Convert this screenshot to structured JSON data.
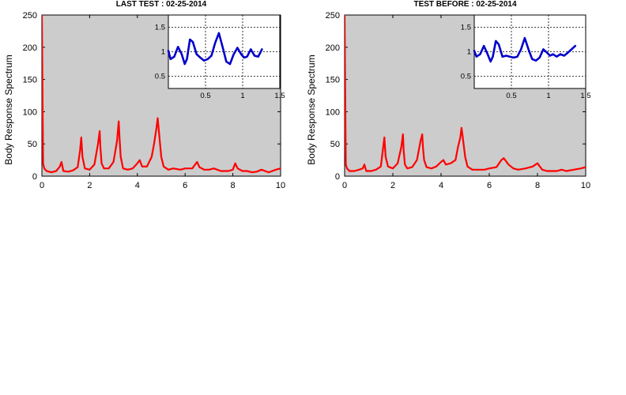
{
  "chart_data": [
    {
      "type": "line",
      "title": "LAST TEST : 02-25-2014",
      "ylabel": "Body Response Spectrum",
      "xlabel": "",
      "xlim": [
        0,
        10
      ],
      "ylim": [
        0,
        250
      ],
      "xticks": [
        "0",
        "2",
        "4",
        "6",
        "8",
        "10"
      ],
      "yticks": [
        "0",
        "50",
        "100",
        "150",
        "200",
        "250"
      ],
      "background": "#cccccc",
      "grid": false,
      "series": [
        {
          "color": "#ff0000",
          "x": [
            0.0,
            0.02,
            0.05,
            0.1,
            0.2,
            0.4,
            0.6,
            0.75,
            0.82,
            0.9,
            1.1,
            1.3,
            1.5,
            1.6,
            1.65,
            1.7,
            1.8,
            2.0,
            2.2,
            2.35,
            2.42,
            2.45,
            2.5,
            2.6,
            2.8,
            3.0,
            3.15,
            3.22,
            3.25,
            3.3,
            3.4,
            3.6,
            3.8,
            4.0,
            4.1,
            4.2,
            4.4,
            4.6,
            4.7,
            4.8,
            4.85,
            4.9,
            5.0,
            5.1,
            5.3,
            5.5,
            5.8,
            6.0,
            6.3,
            6.5,
            6.6,
            6.8,
            7.0,
            7.2,
            7.5,
            7.8,
            8.0,
            8.1,
            8.2,
            8.4,
            8.6,
            8.8,
            9.0,
            9.2,
            9.5,
            9.8,
            10.0
          ],
          "y": [
            250,
            160,
            20,
            12,
            8,
            6,
            8,
            15,
            22,
            8,
            7,
            9,
            14,
            40,
            60,
            30,
            12,
            10,
            18,
            50,
            70,
            45,
            20,
            12,
            12,
            22,
            55,
            85,
            60,
            30,
            12,
            10,
            12,
            20,
            25,
            15,
            15,
            30,
            50,
            75,
            90,
            70,
            30,
            15,
            10,
            12,
            10,
            12,
            12,
            22,
            14,
            10,
            10,
            12,
            8,
            8,
            10,
            20,
            12,
            8,
            8,
            6,
            7,
            10,
            6,
            10,
            12
          ]
        }
      ],
      "inset": {
        "xlim": [
          0,
          1.5
        ],
        "ylim": [
          0.25,
          1.75
        ],
        "xticks": [
          "0.5",
          "1",
          "1.5"
        ],
        "yticks": [
          "0.5",
          "1",
          "1.5"
        ],
        "grid": true,
        "series": [
          {
            "color": "#0000cc",
            "x": [
              0.0,
              0.03,
              0.08,
              0.13,
              0.18,
              0.22,
              0.25,
              0.29,
              0.33,
              0.38,
              0.43,
              0.48,
              0.53,
              0.58,
              0.63,
              0.68,
              0.73,
              0.78,
              0.83,
              0.88,
              0.93,
              0.98,
              1.02,
              1.06,
              1.11,
              1.16,
              1.21,
              1.26
            ],
            "y": [
              1.02,
              0.85,
              0.9,
              1.1,
              0.95,
              0.75,
              0.85,
              1.25,
              1.2,
              0.95,
              0.88,
              0.82,
              0.85,
              0.92,
              1.18,
              1.38,
              1.1,
              0.8,
              0.75,
              0.95,
              1.08,
              0.95,
              0.88,
              0.9,
              1.05,
              0.92,
              0.9,
              1.05
            ]
          }
        ]
      }
    },
    {
      "type": "line",
      "title": "TEST BEFORE : 02-25-2014",
      "ylabel": "Body Response Spectrum",
      "xlabel": "",
      "xlim": [
        0,
        10
      ],
      "ylim": [
        0,
        250
      ],
      "xticks": [
        "0",
        "2",
        "4",
        "6",
        "8",
        "10"
      ],
      "yticks": [
        "0",
        "50",
        "100",
        "150",
        "200",
        "250"
      ],
      "background": "#cccccc",
      "grid": false,
      "series": [
        {
          "color": "#ff0000",
          "x": [
            0.0,
            0.02,
            0.05,
            0.1,
            0.2,
            0.4,
            0.6,
            0.75,
            0.82,
            0.9,
            1.1,
            1.3,
            1.5,
            1.6,
            1.65,
            1.7,
            1.8,
            2.0,
            2.2,
            2.35,
            2.42,
            2.45,
            2.5,
            2.6,
            2.8,
            3.0,
            3.15,
            3.22,
            3.25,
            3.3,
            3.4,
            3.6,
            3.8,
            4.0,
            4.1,
            4.2,
            4.4,
            4.6,
            4.7,
            4.8,
            4.85,
            4.9,
            5.0,
            5.1,
            5.3,
            5.5,
            5.8,
            6.0,
            6.3,
            6.5,
            6.6,
            6.8,
            7.0,
            7.2,
            7.5,
            7.8,
            8.0,
            8.1,
            8.2,
            8.4,
            8.6,
            8.8,
            9.0,
            9.2,
            9.5,
            9.8,
            10.0
          ],
          "y": [
            250,
            150,
            18,
            12,
            8,
            8,
            10,
            12,
            18,
            8,
            8,
            10,
            15,
            45,
            60,
            30,
            15,
            12,
            20,
            45,
            65,
            40,
            18,
            12,
            14,
            25,
            55,
            65,
            45,
            25,
            14,
            12,
            15,
            22,
            25,
            18,
            20,
            25,
            45,
            60,
            75,
            60,
            30,
            15,
            10,
            10,
            10,
            12,
            14,
            25,
            28,
            18,
            12,
            10,
            12,
            15,
            20,
            15,
            10,
            8,
            8,
            8,
            10,
            8,
            10,
            12,
            14
          ]
        }
      ],
      "inset": {
        "xlim": [
          0,
          1.5
        ],
        "ylim": [
          0.25,
          1.75
        ],
        "xticks": [
          "0.5",
          "1",
          "1.5"
        ],
        "yticks": [
          "0.5",
          "1",
          "1.5"
        ],
        "grid": true,
        "series": [
          {
            "color": "#0000cc",
            "x": [
              0.0,
              0.03,
              0.08,
              0.13,
              0.18,
              0.22,
              0.25,
              0.29,
              0.33,
              0.38,
              0.43,
              0.48,
              0.53,
              0.58,
              0.63,
              0.68,
              0.73,
              0.78,
              0.83,
              0.88,
              0.93,
              0.98,
              1.02,
              1.06,
              1.11,
              1.16,
              1.21,
              1.26,
              1.31,
              1.36
            ],
            "y": [
              1.02,
              0.9,
              0.95,
              1.12,
              0.95,
              0.8,
              0.9,
              1.22,
              1.15,
              0.9,
              0.92,
              0.9,
              0.88,
              0.9,
              1.05,
              1.28,
              1.05,
              0.85,
              0.82,
              0.88,
              1.05,
              0.98,
              0.92,
              0.95,
              0.9,
              0.95,
              0.92,
              0.98,
              1.05,
              1.12
            ]
          }
        ]
      }
    }
  ]
}
